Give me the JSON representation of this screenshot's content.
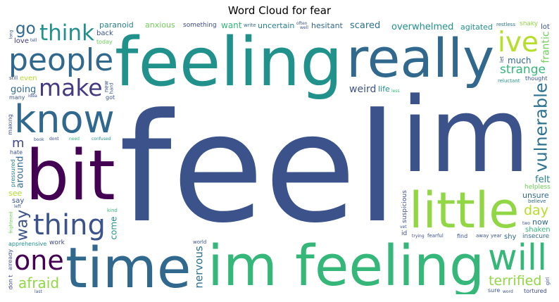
{
  "chart_data": {
    "type": "wordcloud",
    "title": "Word Cloud for fear",
    "colormap": "viridis",
    "words": [
      {
        "text": "feel",
        "weight": 1.0,
        "color": "#3b528b"
      },
      {
        "text": "feeling",
        "weight": 0.86,
        "color": "#21918c"
      },
      {
        "text": "im",
        "weight": 0.68,
        "color": "#3b528b"
      },
      {
        "text": "im feeling",
        "weight": 0.5,
        "color": "#35b779"
      },
      {
        "text": "really",
        "weight": 0.48,
        "color": "#31688e"
      },
      {
        "text": "bit",
        "weight": 0.44,
        "color": "#440154"
      },
      {
        "text": "little",
        "weight": 0.44,
        "color": "#90d743"
      },
      {
        "text": "time",
        "weight": 0.42,
        "color": "#31688e"
      },
      {
        "text": "know",
        "weight": 0.4,
        "color": "#31688e"
      },
      {
        "text": "people",
        "weight": 0.39,
        "color": "#31688e"
      },
      {
        "text": "will",
        "weight": 0.37,
        "color": "#35b779"
      },
      {
        "text": "thing",
        "weight": 0.35,
        "color": "#3b528b"
      },
      {
        "text": "make",
        "weight": 0.34,
        "color": "#443983"
      },
      {
        "text": "one",
        "weight": 0.33,
        "color": "#440154"
      },
      {
        "text": "think",
        "weight": 0.32,
        "color": "#21918c"
      },
      {
        "text": "strange",
        "weight": 0.31,
        "color": "#35b779"
      },
      {
        "text": "afraid",
        "weight": 0.3,
        "color": "#90d743"
      },
      {
        "text": "terrified",
        "weight": 0.29,
        "color": "#90d743"
      },
      {
        "text": "ive",
        "weight": 0.28,
        "color": "#b5de2b"
      },
      {
        "text": "weird",
        "weight": 0.26,
        "color": "#3b528b"
      },
      {
        "text": "unsure",
        "weight": 0.25,
        "color": "#31688e"
      },
      {
        "text": "vulnerable",
        "weight": 0.25,
        "color": "#2c728e"
      },
      {
        "text": "scared",
        "weight": 0.24,
        "color": "#2c728e"
      },
      {
        "text": "overwhelmed",
        "weight": 0.23,
        "color": "#21918c"
      },
      {
        "text": "uncertain",
        "weight": 0.23,
        "color": "#26828e"
      },
      {
        "text": "want",
        "weight": 0.22,
        "color": "#35b779"
      },
      {
        "text": "shaken",
        "weight": 0.22,
        "color": "#35b779"
      },
      {
        "text": "way",
        "weight": 0.22,
        "color": "#3b528b"
      },
      {
        "text": "anxious",
        "weight": 0.2,
        "color": "#6ece58"
      },
      {
        "text": "paranoid",
        "weight": 0.2,
        "color": "#26828e"
      },
      {
        "text": "going",
        "weight": 0.19,
        "color": "#31688e"
      },
      {
        "text": "day",
        "weight": 0.19,
        "color": "#b5de2b"
      },
      {
        "text": "much",
        "weight": 0.18,
        "color": "#31688e"
      },
      {
        "text": "nervous",
        "weight": 0.18,
        "color": "#2c728e"
      },
      {
        "text": "agitated",
        "weight": 0.17,
        "color": "#21918c"
      },
      {
        "text": "something",
        "weight": 0.17,
        "color": "#3e4989"
      },
      {
        "text": "felt",
        "weight": 0.16,
        "color": "#26828e"
      },
      {
        "text": "hesitant",
        "weight": 0.16,
        "color": "#31688e"
      },
      {
        "text": "go",
        "weight": 0.16,
        "color": "#31688e"
      },
      {
        "text": "around",
        "weight": 0.16,
        "color": "#31688e"
      },
      {
        "text": "life",
        "weight": 0.15,
        "color": "#21918c"
      },
      {
        "text": "see",
        "weight": 0.15,
        "color": "#b5de2b"
      },
      {
        "text": "now",
        "weight": 0.15,
        "color": "#31688e"
      },
      {
        "text": "m",
        "weight": 0.14,
        "color": "#3e4989"
      },
      {
        "text": "even",
        "weight": 0.14,
        "color": "#b5de2b"
      },
      {
        "text": "frantic",
        "weight": 0.13,
        "color": "#6ece58"
      },
      {
        "text": "helpless",
        "weight": 0.13,
        "color": "#6ece58"
      },
      {
        "text": "shaky",
        "weight": 0.12,
        "color": "#90d743"
      },
      {
        "text": "reluctant",
        "weight": 0.12,
        "color": "#21918c"
      },
      {
        "text": "insecure",
        "weight": 0.12,
        "color": "#31688e"
      },
      {
        "text": "doubtful",
        "weight": 0.12,
        "color": "#26828e"
      },
      {
        "text": "suspicious",
        "weight": 0.12,
        "color": "#3b528b"
      },
      {
        "text": "apprehensive",
        "weight": 0.11,
        "color": "#21918c"
      },
      {
        "text": "confused",
        "weight": 0.11,
        "color": "#21918c"
      },
      {
        "text": "tortured",
        "weight": 0.11,
        "color": "#3e4989"
      },
      {
        "text": "skeptical",
        "weight": 0.1,
        "color": "#3e4989"
      },
      {
        "text": "fearful",
        "weight": 0.1,
        "color": "#3b528b"
      },
      {
        "text": "distressed",
        "weight": 0.1,
        "color": "#6ece58"
      },
      {
        "text": "restless",
        "weight": 0.1,
        "color": "#2c728e"
      },
      {
        "text": "write",
        "weight": 0.1,
        "color": "#31688e"
      },
      {
        "text": "intimidated",
        "weight": 0.1,
        "color": "#21918c"
      },
      {
        "text": "world",
        "weight": 0.1,
        "color": "#3b528b"
      },
      {
        "text": "today",
        "weight": 0.09,
        "color": "#6ece58"
      },
      {
        "text": "pressured",
        "weight": 0.09,
        "color": "#26828e"
      },
      {
        "text": "love",
        "weight": 0.09,
        "color": "#443983"
      },
      {
        "text": "got",
        "weight": 0.09,
        "color": "#3b528b"
      },
      {
        "text": "back",
        "weight": 0.09,
        "color": "#3b528b"
      },
      {
        "text": "less",
        "weight": 0.09,
        "color": "#35b779"
      },
      {
        "text": "find",
        "weight": 0.09,
        "color": "#3b528b"
      },
      {
        "text": "come",
        "weight": 0.09,
        "color": "#21918c"
      },
      {
        "text": "shy",
        "weight": 0.09,
        "color": "#31688e"
      },
      {
        "text": "thought",
        "weight": 0.09,
        "color": "#3b528b"
      },
      {
        "text": "lot",
        "weight": 0.09,
        "color": "#3b528b"
      },
      {
        "text": "say",
        "weight": 0.09,
        "color": "#3b528b"
      },
      {
        "text": "dont",
        "weight": 0.09,
        "color": "#3e4989"
      },
      {
        "text": "don t",
        "weight": 0.09,
        "color": "#3e4989"
      },
      {
        "text": "work",
        "weight": 0.08,
        "color": "#3e4989"
      },
      {
        "text": "kind",
        "weight": 0.08,
        "color": "#35b779"
      },
      {
        "text": "away",
        "weight": 0.08,
        "color": "#3b528b"
      },
      {
        "text": "feel threatened",
        "weight": 0.08,
        "color": "#21918c"
      },
      {
        "text": "believe",
        "weight": 0.08,
        "color": "#31688e"
      },
      {
        "text": "someone",
        "weight": 0.08,
        "color": "#6ece58"
      },
      {
        "text": "many",
        "weight": 0.07,
        "color": "#3b528b"
      },
      {
        "text": "need",
        "weight": 0.07,
        "color": "#35b779"
      },
      {
        "text": "word",
        "weight": 0.07,
        "color": "#3b528b"
      },
      {
        "text": "feel shy",
        "weight": 0.07,
        "color": "#3b528b"
      },
      {
        "text": "trying",
        "weight": 0.07,
        "color": "#3e4989"
      },
      {
        "text": "already",
        "weight": 0.07,
        "color": "#3b528b"
      },
      {
        "text": "actually",
        "weight": 0.07,
        "color": "#443983"
      },
      {
        "text": "still feel",
        "weight": 0.07,
        "color": "#3b528b"
      },
      {
        "text": "feel insecure",
        "weight": 0.07,
        "color": "#3b528b"
      },
      {
        "text": "dont know",
        "weight": 0.07,
        "color": "#26828e"
      },
      {
        "text": "right now",
        "weight": 0.07,
        "color": "#3e4989"
      },
      {
        "text": "frightened",
        "weight": 0.07,
        "color": "#6ece58"
      },
      {
        "text": "moment",
        "weight": 0.07,
        "color": "#3b528b"
      },
      {
        "text": "uncomfortable",
        "weight": 0.06,
        "color": "#3b528b"
      },
      {
        "text": "indecisive",
        "weight": 0.06,
        "color": "#3b528b"
      },
      {
        "text": "home",
        "weight": 0.06,
        "color": "#3b528b"
      },
      {
        "text": "pretty",
        "weight": 0.06,
        "color": "#3b528b"
      },
      {
        "text": "hard",
        "weight": 0.06,
        "color": "#3b528b"
      },
      {
        "text": "every",
        "weight": 0.06,
        "color": "#3b528b"
      },
      {
        "text": "keep",
        "weight": 0.06,
        "color": "#3b528b"
      },
      {
        "text": "quite",
        "weight": 0.06,
        "color": "#3b528b"
      },
      {
        "text": "talk",
        "weight": 0.06,
        "color": "#3b528b"
      },
      {
        "text": "heart",
        "weight": 0.06,
        "color": "#3b528b"
      },
      {
        "text": "friend",
        "weight": 0.06,
        "color": "#3b528b"
      },
      {
        "text": "sometimes",
        "weight": 0.06,
        "color": "#3b528b"
      },
      {
        "text": "year",
        "weight": 0.06,
        "color": "#3b528b"
      },
      {
        "text": "anything",
        "weight": 0.06,
        "color": "#3b528b"
      },
      {
        "text": "book",
        "weight": 0.05,
        "color": "#3b528b"
      },
      {
        "text": "situation",
        "weight": 0.05,
        "color": "#3b528b"
      },
      {
        "text": "feel intimidated",
        "weight": 0.05,
        "color": "#3b528b"
      },
      {
        "text": "guess",
        "weight": 0.05,
        "color": "#3b528b"
      },
      {
        "text": "well",
        "weight": 0.05,
        "color": "#3b528b"
      },
      {
        "text": "vet",
        "weight": 0.05,
        "color": "#3b528b"
      },
      {
        "text": "tell",
        "weight": 0.05,
        "color": "#3b528b"
      },
      {
        "text": "good",
        "weight": 0.05,
        "color": "#3b528b"
      },
      {
        "text": "uptight",
        "weight": 0.05,
        "color": "#3b528b"
      },
      {
        "text": "enough",
        "weight": 0.05,
        "color": "#3b528b"
      },
      {
        "text": "often",
        "weight": 0.05,
        "color": "#3b528b"
      },
      {
        "text": "idea",
        "weight": 0.05,
        "color": "#3b528b"
      },
      {
        "text": "everything",
        "weight": 0.05,
        "color": "#3b528b"
      },
      {
        "text": "left",
        "weight": 0.05,
        "color": "#3b528b"
      },
      {
        "text": "making",
        "weight": 0.05,
        "color": "#3b528b"
      },
      {
        "text": "hate",
        "weight": 0.05,
        "color": "#3b528b"
      },
      {
        "text": "sure",
        "weight": 0.05,
        "color": "#3b528b"
      },
      {
        "text": "start",
        "weight": 0.05,
        "color": "#3b528b"
      },
      {
        "text": "getting",
        "weight": 0.05,
        "color": "#3b528b"
      },
      {
        "text": "though",
        "weight": 0.05,
        "color": "#3b528b"
      },
      {
        "text": "better",
        "weight": 0.05,
        "color": "#3b528b"
      },
      {
        "text": "night",
        "weight": 0.05,
        "color": "#3b528b"
      },
      {
        "text": "blog",
        "weight": 0.05,
        "color": "#3b528b"
      },
      {
        "text": "take",
        "weight": 0.05,
        "color": "#3b528b"
      },
      {
        "text": "past",
        "weight": 0.05,
        "color": "#3b528b"
      },
      {
        "text": "went",
        "weight": 0.05,
        "color": "#3b528b"
      },
      {
        "text": "long",
        "weight": 0.05,
        "color": "#3b528b"
      },
      {
        "text": "look",
        "weight": 0.05,
        "color": "#3b528b"
      },
      {
        "text": "started",
        "weight": 0.05,
        "color": "#3b528b"
      },
      {
        "text": "cant",
        "weight": 0.05,
        "color": "#3b528b"
      },
      {
        "text": "two",
        "weight": 0.05,
        "color": "#3b528b"
      },
      {
        "text": "last",
        "weight": 0.05,
        "color": "#3b528b"
      },
      {
        "text": "new",
        "weight": 0.05,
        "color": "#3b528b"
      },
      {
        "text": "help",
        "weight": 0.05,
        "color": "#3b528b"
      },
      {
        "text": "others",
        "weight": 0.05,
        "color": "#3b528b"
      },
      {
        "text": "week",
        "weight": 0.05,
        "color": "#3b528b"
      },
      {
        "text": "made",
        "weight": 0.05,
        "color": "#3b528b"
      },
      {
        "text": "starting",
        "weight": 0.05,
        "color": "#3b528b"
      },
      {
        "text": "feel reluctant",
        "weight": 0.04,
        "color": "#3b528b"
      },
      {
        "text": "distraught",
        "weight": 0.04,
        "color": "#3b528b"
      },
      {
        "text": "right",
        "weight": 0.04,
        "color": "#3b528b"
      },
      {
        "text": "walk",
        "weight": 0.04,
        "color": "#3b528b"
      },
      {
        "text": "feel uncomfortable",
        "weight": 0.04,
        "color": "#3b528b"
      },
      {
        "text": "always feel",
        "weight": 0.04,
        "color": "#3b528b"
      },
      {
        "text": "feel pressured",
        "weight": 0.04,
        "color": "#3b528b"
      },
      {
        "text": "especially",
        "weight": 0.04,
        "color": "#3b528b"
      },
      {
        "text": "able",
        "weight": 0.04,
        "color": "#3b528b"
      },
      {
        "text": "place",
        "weight": 0.04,
        "color": "#3b528b"
      },
      {
        "text": "person",
        "weight": 0.04,
        "color": "#3b528b"
      },
      {
        "text": "nothing",
        "weight": 0.04,
        "color": "#3b528b"
      },
      {
        "text": "admit",
        "weight": 0.04,
        "color": "#3b528b"
      },
      {
        "text": "feeling anxious",
        "weight": 0.04,
        "color": "#3b528b"
      },
      {
        "text": "feeling nervous",
        "weight": 0.04,
        "color": "#3b528b"
      },
      {
        "text": "never",
        "weight": 0.04,
        "color": "#3b528b"
      },
      {
        "text": "stop",
        "weight": 0.04,
        "color": "#3b528b"
      },
      {
        "text": "rather",
        "weight": 0.04,
        "color": "#3b528b"
      },
      {
        "text": "anyone",
        "weight": 0.04,
        "color": "#3b528b"
      },
      {
        "text": "family",
        "weight": 0.04,
        "color": "#3b528b"
      },
      {
        "text": "fear",
        "weight": 0.04,
        "color": "#3b528b"
      },
      {
        "text": "god",
        "weight": 0.04,
        "color": "#3b528b"
      },
      {
        "text": "head",
        "weight": 0.04,
        "color": "#3b528b"
      },
      {
        "text": "knowing",
        "weight": 0.04,
        "color": "#3b528b"
      },
      {
        "text": "let",
        "weight": 0.04,
        "color": "#3b528b"
      },
      {
        "text": "another",
        "weight": 0.04,
        "color": "#3b528b"
      },
      {
        "text": "assaulted",
        "weight": 0.04,
        "color": "#3b528b"
      },
      {
        "text": "threatened",
        "weight": 0.04,
        "color": "#3b528b"
      },
      {
        "text": "post",
        "weight": 0.04,
        "color": "#3b528b"
      },
      {
        "text": "still",
        "weight": 0.04,
        "color": "#3b528b"
      },
      {
        "text": "girl",
        "weight": 0.04,
        "color": "#3b528b"
      },
      {
        "text": "id",
        "weight": 0.04,
        "color": "#3b528b"
      },
      {
        "text": "point",
        "weight": 0.04,
        "color": "#3b528b"
      }
    ]
  }
}
